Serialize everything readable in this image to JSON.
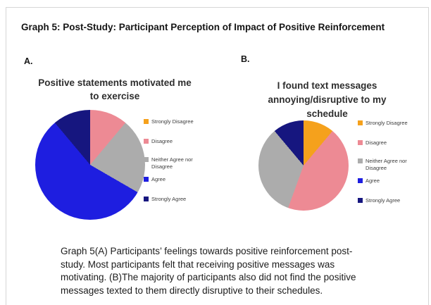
{
  "page": {
    "title": "Graph 5: Post-Study: Participant Perception of Impact of Positive Reinforcement",
    "panel_a_label": "A.",
    "panel_b_label": "B."
  },
  "chart_data": [
    {
      "type": "pie",
      "title": "Positive statements motivated me to exercise",
      "categories": [
        "Strongly Disagree",
        "Disagree",
        "Neither Agree nor Disagree",
        "Agree",
        "Strongly Agree"
      ],
      "values": [
        0,
        1,
        2,
        5,
        1
      ],
      "colors": [
        "#F5A11C",
        "#ED8A94",
        "#ACACAC",
        "#1E1EE0",
        "#16167F"
      ],
      "units": "participants (of 9)",
      "legend_position": "right",
      "start_angle_deg": 0,
      "direction": "clockwise"
    },
    {
      "type": "pie",
      "title": "I found text messages annoying/disruptive to my schedule",
      "categories": [
        "Strongly Disagree",
        "Disagree",
        "Neither Agree nor Disagree",
        "Agree",
        "Strongly Agree"
      ],
      "values": [
        1,
        4,
        3,
        0,
        1
      ],
      "colors": [
        "#F5A11C",
        "#ED8A94",
        "#ACACAC",
        "#1E1EE0",
        "#16167F"
      ],
      "units": "participants (of 9)",
      "legend_position": "right",
      "start_angle_deg": 0,
      "direction": "clockwise"
    }
  ],
  "caption": {
    "lines": [
      "Graph 5(A) Participants’ feelings towards positive reinforcement post-",
      "study. Most participants felt that receiving positive messages was",
      "motivating. (B)The majority of participants also did not find the positive",
      "messages texted to them directly disruptive to their schedules."
    ]
  }
}
